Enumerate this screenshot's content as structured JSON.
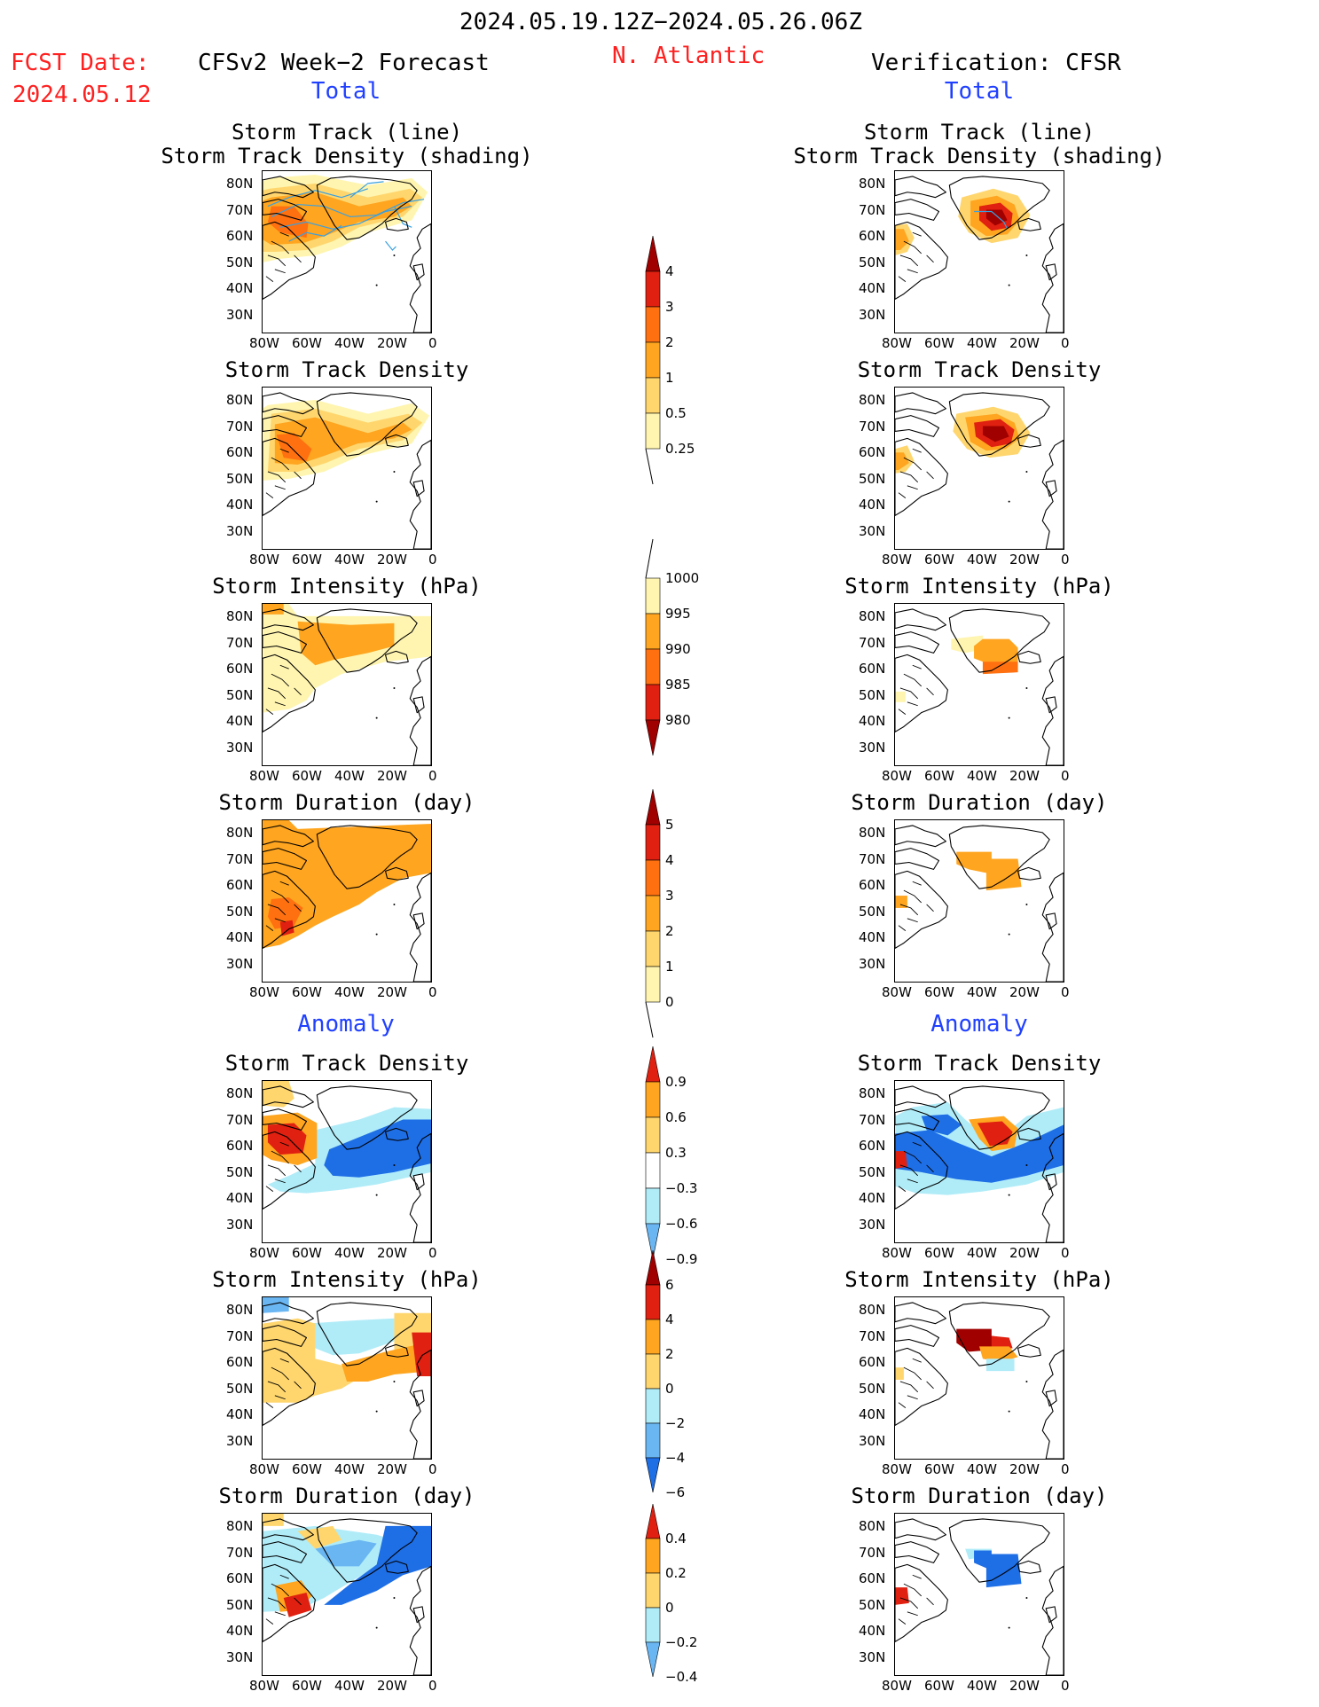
{
  "header": {
    "date_range": "2024.05.19.12Z−2024.05.26.06Z",
    "fcst_label": "FCST Date:",
    "fcst_date": "2024.05.12",
    "forecast_title": "CFSv2 Week−2 Forecast",
    "region": "N. Atlantic",
    "verification_title": "Verification: CFSR"
  },
  "sections": {
    "total": "Total",
    "anomaly": "Anomaly"
  },
  "panel_titles": {
    "track_line": "Storm Track (line)",
    "track_shading": "Storm Track Density (shading)",
    "track_density": "Storm Track Density",
    "intensity": "Storm Intensity (hPa)",
    "duration": "Storm Duration (day)"
  },
  "axes": {
    "lat_labels": [
      "80N",
      "70N",
      "60N",
      "50N",
      "40N",
      "30N"
    ],
    "lon_labels": [
      "80W",
      "60W",
      "40W",
      "20W",
      "0"
    ]
  },
  "colorbars": {
    "density": [
      "4",
      "3",
      "2",
      "1",
      "0.5",
      "0.25"
    ],
    "intensity": [
      "1000",
      "995",
      "990",
      "985",
      "980"
    ],
    "duration": [
      "5",
      "4",
      "3",
      "2",
      "1",
      "0"
    ],
    "density_anom": [
      "0.9",
      "0.6",
      "0.3",
      "−0.3",
      "−0.6",
      "−0.9"
    ],
    "intensity_anom": [
      "6",
      "4",
      "2",
      "0",
      "−2",
      "−4",
      "−6"
    ],
    "duration_anom": [
      "0.4",
      "0.2",
      "0",
      "−0.2",
      "−0.4"
    ]
  },
  "colors": {
    "title_red": "#ff2020",
    "title_blue": "#2040ff",
    "pale_yellow": "#fff5b0",
    "yellow": "#ffd66e",
    "orange": "#ffa51f",
    "dark_orange": "#ff7010",
    "red": "#e02010",
    "dark_red": "#a00000",
    "light_blue": "#b0ecf8",
    "mid_blue": "#6ab6f2",
    "blue": "#1e6ee6",
    "track_line": "#3aa0e0"
  }
}
